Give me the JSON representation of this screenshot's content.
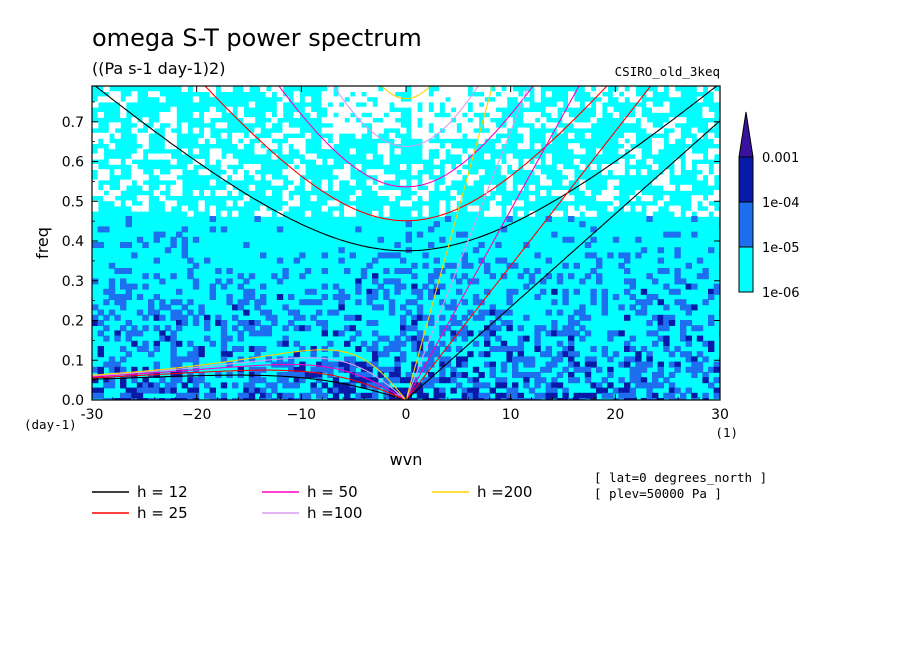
{
  "chart_data": {
    "type": "heatmap",
    "title": "omega S-T power spectrum",
    "units": "((Pa s-1 day-1)2)",
    "model": "CSIRO_old_3keq",
    "xlabel": "wvn",
    "ylabel": "freq",
    "y_unit": "(day-1)",
    "x_unit": "(1)",
    "xlim": [
      -30,
      30
    ],
    "ylim": [
      0,
      0.79
    ],
    "xticks": [
      -30,
      -20,
      -10,
      0,
      10,
      20,
      30
    ],
    "xtick_labels": [
      "-30",
      "−20",
      "−10",
      "0",
      "10",
      "20",
      "30"
    ],
    "yticks": [
      0.0,
      0.1,
      0.2,
      0.3,
      0.4,
      0.5,
      0.6,
      0.7
    ],
    "ytick_labels": [
      "0.0",
      "0.1",
      "0.2",
      "0.3",
      "0.4",
      "0.5",
      "0.6",
      "0.7"
    ],
    "colorbar": {
      "levels": [
        "1e-06",
        "1e-05",
        "1e-04",
        "0.001"
      ],
      "colors": [
        "#00ffff",
        "#1e6ff0",
        "#0a1aa8",
        "#3a12a0"
      ]
    },
    "annotations": [
      "[ lat=0 degrees_north ]",
      "[ plev=50000 Pa ]"
    ],
    "dispersion_curves": [
      {
        "label": "h = 12",
        "h": 12,
        "color": "#000000"
      },
      {
        "label": "h = 25",
        "h": 25,
        "color": "#ff0000"
      },
      {
        "label": "h = 50",
        "h": 50,
        "color": "#ff00c0"
      },
      {
        "label": "h =100",
        "h": 100,
        "color": "#d89cf0"
      },
      {
        "label": "h =200",
        "h": 200,
        "color": "#ffd000"
      }
    ]
  }
}
